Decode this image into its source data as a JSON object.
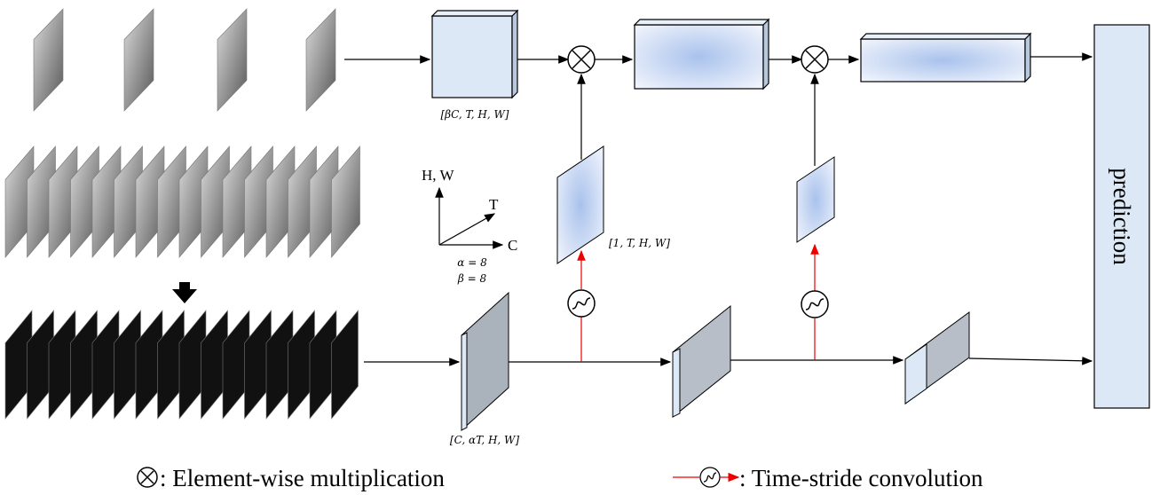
{
  "labels": {
    "box_top": "[βC, T, H, W]",
    "attention": "[1, T, H, W]",
    "box_bottom": "[C, αT, H, W]",
    "axis_hw": "H, W",
    "axis_t": "T",
    "axis_c": "C",
    "alpha": "α = 8",
    "beta": "β = 8"
  },
  "prediction": "prediction",
  "legend": {
    "multiply": ": Element-wise multiplication",
    "conv": ": Time-stride convolution"
  }
}
